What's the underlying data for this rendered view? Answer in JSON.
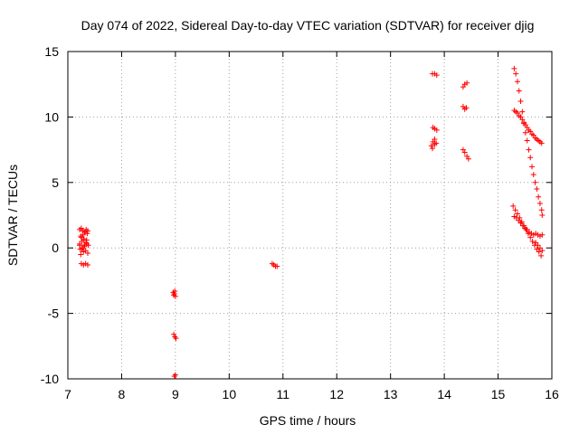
{
  "chart_data": {
    "type": "scatter",
    "title": "Day 074 of 2022, Sidereal Day-to-day VTEC variation (SDTVAR) for receiver djig",
    "xlabel": "GPS time / hours",
    "ylabel": "SDTVAR / TECUs",
    "xlim": [
      7,
      16
    ],
    "ylim": [
      -10,
      15
    ],
    "xticks": [
      7,
      8,
      9,
      10,
      11,
      12,
      13,
      14,
      15,
      16
    ],
    "yticks": [
      -10,
      -5,
      0,
      5,
      10,
      15
    ],
    "grid": true,
    "marker": "plus",
    "color": "#ff0000",
    "series": [
      {
        "name": "SDTVAR",
        "x": [
          7.22,
          7.25,
          7.28,
          7.31,
          7.34,
          7.37,
          7.24,
          7.28,
          7.32,
          7.36,
          7.22,
          7.26,
          7.3,
          7.34,
          7.38,
          7.23,
          7.27,
          7.31,
          7.35,
          7.24,
          7.29,
          7.33,
          7.37,
          7.25,
          7.3,
          7.35,
          7.22,
          7.26,
          7.3,
          7.34,
          7.25,
          7.29,
          7.33,
          7.37,
          8.96,
          8.98,
          9.0,
          8.97,
          8.99,
          8.97,
          8.99,
          9.01,
          8.98,
          9.0,
          10.8,
          10.83,
          10.86,
          10.89,
          13.78,
          13.82,
          13.86,
          13.79,
          13.82,
          13.86,
          13.76,
          13.79,
          13.82,
          13.85,
          13.78,
          13.82,
          14.35,
          14.38,
          14.42,
          14.35,
          14.38,
          14.41,
          14.35,
          14.38,
          14.42,
          14.45,
          15.3,
          15.33,
          15.36,
          15.39,
          15.42,
          15.45,
          15.48,
          15.51,
          15.54,
          15.57,
          15.6,
          15.63,
          15.66,
          15.69,
          15.72,
          15.75,
          15.78,
          15.81,
          15.82,
          15.3,
          15.33,
          15.36,
          15.39,
          15.42,
          15.45,
          15.48,
          15.51,
          15.54,
          15.57,
          15.6,
          15.63,
          15.66,
          15.69,
          15.72,
          15.75,
          15.78,
          15.81,
          15.28,
          15.32,
          15.36,
          15.4,
          15.44,
          15.48,
          15.52,
          15.56,
          15.6,
          15.64,
          15.68,
          15.72,
          15.76,
          15.8,
          15.3,
          15.34,
          15.38,
          15.42,
          15.46,
          15.5,
          15.54,
          15.58,
          15.62,
          15.66,
          15.7,
          15.74,
          15.78,
          15.82,
          15.7,
          15.74,
          15.78,
          15.82
        ],
        "y": [
          1.4,
          1.5,
          1.3,
          1.2,
          1.4,
          1.3,
          0.9,
          1.0,
          1.2,
          1.1,
          0.3,
          0.5,
          0.6,
          0.4,
          0.2,
          -0.1,
          0.0,
          0.2,
          0.3,
          -0.5,
          -0.3,
          -0.2,
          -0.4,
          0.8,
          0.7,
          0.6,
          0.2,
          -0.1,
          0.1,
          0.4,
          -1.2,
          -1.3,
          -1.2,
          -1.3,
          -3.4,
          -3.5,
          -3.7,
          -3.6,
          -3.3,
          -6.6,
          -6.8,
          -6.9,
          -9.8,
          -9.7,
          -1.2,
          -1.3,
          -1.4,
          -1.4,
          13.3,
          13.3,
          13.2,
          9.2,
          9.1,
          9.0,
          7.8,
          8.1,
          8.3,
          8.0,
          7.6,
          7.9,
          12.3,
          12.5,
          12.6,
          10.8,
          10.6,
          10.7,
          7.5,
          7.3,
          7.0,
          6.8,
          13.7,
          13.3,
          12.7,
          12.0,
          11.2,
          10.4,
          9.5,
          8.8,
          8.2,
          7.5,
          6.9,
          6.2,
          5.6,
          5.0,
          4.5,
          3.9,
          3.4,
          2.9,
          2.5,
          10.5,
          10.4,
          10.3,
          10.1,
          10.0,
          9.8,
          9.6,
          9.4,
          9.2,
          9.0,
          8.9,
          8.7,
          8.6,
          8.4,
          8.3,
          8.2,
          8.1,
          8.0,
          3.2,
          2.9,
          2.6,
          2.3,
          2.0,
          1.7,
          1.4,
          1.1,
          0.8,
          0.5,
          0.2,
          -0.1,
          -0.3,
          -0.6,
          2.4,
          2.3,
          2.1,
          1.9,
          1.7,
          1.5,
          1.4,
          1.2,
          1.1,
          1.0,
          1.1,
          1.0,
          0.9,
          1.0,
          0.4,
          0.2,
          0.0,
          -0.2
        ]
      }
    ]
  }
}
